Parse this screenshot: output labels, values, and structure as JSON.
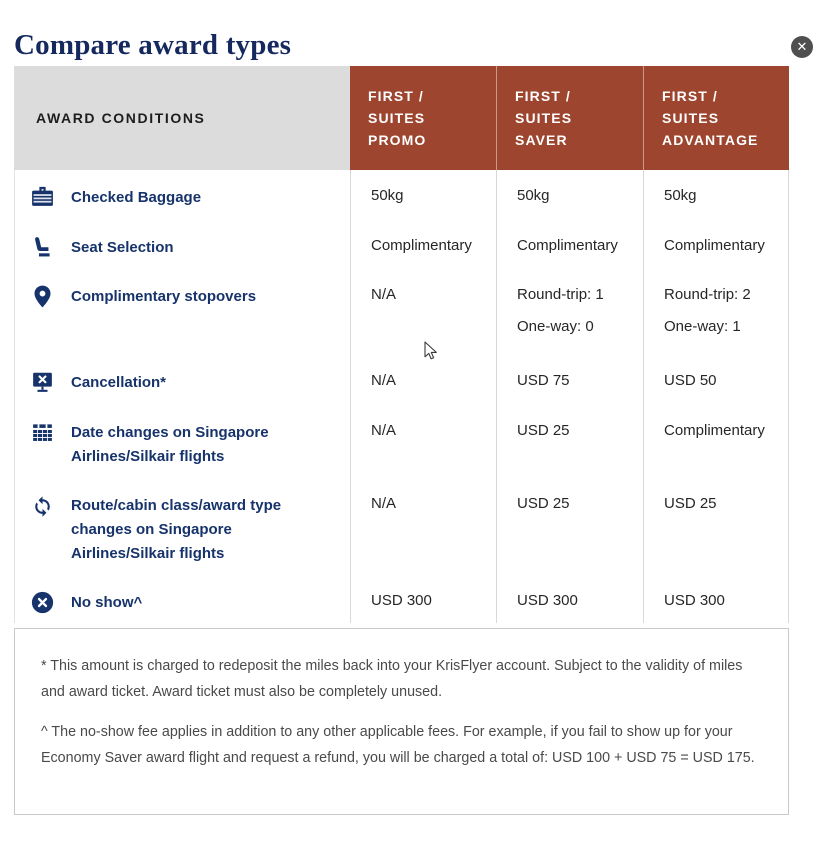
{
  "modal": {
    "title": "Compare award types",
    "close_symbol": "✕"
  },
  "table": {
    "conditions_header": "AWARD CONDITIONS",
    "columns": [
      "FIRST /\nSUITES\nPROMO",
      "FIRST /\nSUITES\nSAVER",
      "FIRST /\nSUITES\nADVANTAGE"
    ],
    "rows": [
      {
        "icon": "baggage-icon",
        "label": "Checked Baggage",
        "values": [
          [
            "50kg"
          ],
          [
            "50kg"
          ],
          [
            "50kg"
          ]
        ]
      },
      {
        "icon": "seat-icon",
        "label": "Seat Selection",
        "values": [
          [
            "Complimentary"
          ],
          [
            "Complimentary"
          ],
          [
            "Complimentary"
          ]
        ]
      },
      {
        "icon": "location-pin-icon",
        "label": "Complimentary stopovers",
        "values": [
          [
            "N/A"
          ],
          [
            "Round-trip: 1",
            "One-way: 0"
          ],
          [
            "Round-trip: 2",
            "One-way: 1"
          ]
        ]
      },
      {
        "icon": "cancellation-icon",
        "label": "Cancellation*",
        "values": [
          [
            "N/A"
          ],
          [
            "USD 75"
          ],
          [
            "USD 50"
          ]
        ]
      },
      {
        "icon": "calendar-icon",
        "label": "Date changes on Singapore Airlines/Silkair flights",
        "values": [
          [
            "N/A"
          ],
          [
            "USD 25"
          ],
          [
            "Complimentary"
          ]
        ]
      },
      {
        "icon": "refresh-icon",
        "label": "Route/cabin class/award type changes on Singapore Airlines/Silkair flights",
        "values": [
          [
            "N/A"
          ],
          [
            "USD 25"
          ],
          [
            "USD 25"
          ]
        ]
      },
      {
        "icon": "no-show-icon",
        "label": "No show^",
        "values": [
          [
            "USD 300"
          ],
          [
            "USD 300"
          ],
          [
            "USD 300"
          ]
        ]
      }
    ]
  },
  "footnotes": [
    "* This amount is charged to redeposit the miles back into your KrisFlyer account. Subject to the validity of miles and award ticket. Award ticket must also be completely unused.",
    "^ The no-show fee applies in addition to any other applicable fees. For example, if you fail to show up for your Economy Saver award flight and request a refund, you will be charged a total of: USD 100 + USD 75 = USD 175."
  ],
  "colors": {
    "red": "#9D452F",
    "gray_header": "#DCDCDC",
    "navy": "#17336B",
    "title_navy": "#16295F",
    "text": "#262626",
    "footnote": "#4A4A4A",
    "border": "#D8D8D8",
    "close_bg": "#4F4F4F"
  }
}
